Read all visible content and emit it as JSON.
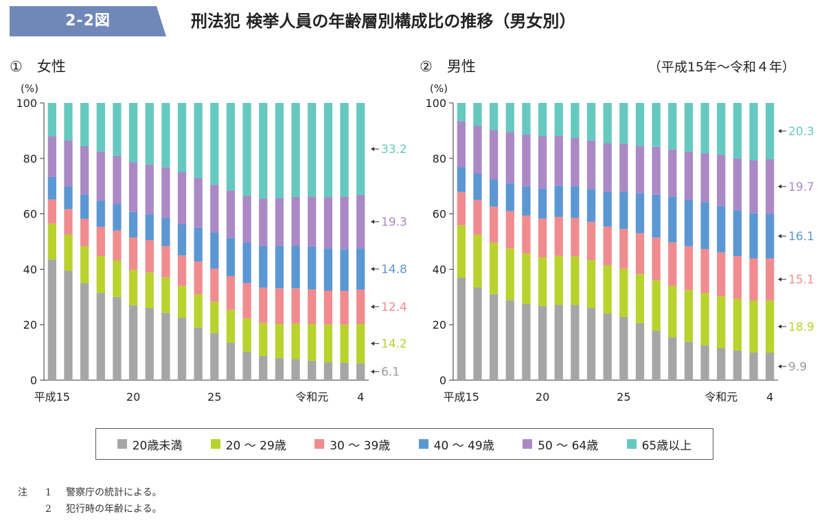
{
  "header": {
    "figure_number": "2-2図",
    "title": "刑法犯 検挙人員の年齢層別構成比の推移（男女別）"
  },
  "period_label": "（平成15年～令和４年）",
  "legend": [
    {
      "label": "20歳未満",
      "color": "#a6a6a6"
    },
    {
      "label": "20 ～ 29歳",
      "color": "#b9d22e"
    },
    {
      "label": "30 ～ 39歳",
      "color": "#f08c8f"
    },
    {
      "label": "40 ～ 49歳",
      "color": "#5b97d3"
    },
    {
      "label": "50 ～ 64歳",
      "color": "#ab89c5"
    },
    {
      "label": "65歳以上",
      "color": "#66c9c0"
    }
  ],
  "notes": {
    "head": "注",
    "items": [
      {
        "num": "1",
        "text": "警察庁の統計による。"
      },
      {
        "num": "2",
        "text": "犯行時の年齢による。"
      }
    ]
  },
  "chart_data": [
    {
      "type": "bar",
      "stacked": true,
      "title": "①　女性",
      "ylabel": "(%)",
      "ylim": [
        0,
        100
      ],
      "yticks": [
        0,
        20,
        40,
        60,
        80,
        100
      ],
      "categories": [
        "平成15",
        "16",
        "17",
        "18",
        "19",
        "20",
        "21",
        "22",
        "23",
        "24",
        "25",
        "26",
        "27",
        "28",
        "29",
        "30",
        "令和元",
        "2",
        "3",
        "4"
      ],
      "xtick_labels": [
        "平成15",
        "",
        "",
        "",
        "",
        "20",
        "",
        "",
        "",
        "",
        "25",
        "",
        "",
        "",
        "",
        "",
        "令和元",
        "",
        "",
        "4"
      ],
      "series": [
        {
          "name": "20歳未満",
          "values": [
            43.5,
            39.5,
            35.0,
            31.5,
            30.0,
            27.0,
            26.0,
            24.3,
            22.5,
            19.0,
            17.0,
            13.5,
            10.3,
            8.7,
            8.0,
            7.6,
            7.0,
            6.5,
            6.2,
            6.1
          ]
        },
        {
          "name": "20 ～ 29歳",
          "values": [
            13.0,
            13.0,
            13.3,
            13.3,
            13.2,
            12.7,
            12.8,
            12.8,
            11.5,
            12.0,
            11.3,
            11.8,
            12.0,
            11.9,
            12.3,
            12.8,
            13.3,
            13.5,
            13.8,
            14.2
          ]
        },
        {
          "name": "30 ～ 39歳",
          "values": [
            8.7,
            9.2,
            9.9,
            10.5,
            10.8,
            11.8,
            11.7,
            11.3,
            11.0,
            11.8,
            11.9,
            12.2,
            12.7,
            12.8,
            12.8,
            12.7,
            12.4,
            12.3,
            12.2,
            12.4
          ]
        },
        {
          "name": "40 ～ 49歳",
          "values": [
            8.1,
            8.2,
            8.8,
            9.5,
            9.5,
            9.2,
            9.3,
            10.2,
            11.3,
            12.2,
            13.0,
            13.8,
            14.5,
            15.0,
            15.3,
            15.4,
            15.4,
            15.2,
            15.0,
            14.8
          ]
        },
        {
          "name": "50 ～ 64歳",
          "values": [
            14.7,
            16.6,
            17.4,
            17.6,
            17.5,
            17.9,
            18.0,
            18.2,
            18.7,
            17.9,
            17.3,
            17.1,
            17.0,
            17.1,
            17.2,
            17.6,
            18.1,
            18.5,
            19.0,
            19.3
          ]
        },
        {
          "name": "65歳以上",
          "values": [
            12.0,
            13.5,
            15.6,
            17.6,
            19.0,
            21.4,
            22.2,
            23.2,
            25.0,
            27.1,
            29.5,
            31.6,
            33.5,
            34.5,
            34.4,
            33.9,
            33.8,
            34.0,
            33.8,
            33.2
          ]
        }
      ],
      "end_labels": [
        "6.1",
        "14.2",
        "12.4",
        "14.8",
        "19.3",
        "33.2"
      ]
    },
    {
      "type": "bar",
      "stacked": true,
      "title": "②　男性",
      "ylabel": "(%)",
      "ylim": [
        0,
        100
      ],
      "yticks": [
        0,
        20,
        40,
        60,
        80,
        100
      ],
      "categories": [
        "平成15",
        "16",
        "17",
        "18",
        "19",
        "20",
        "21",
        "22",
        "23",
        "24",
        "25",
        "26",
        "27",
        "28",
        "29",
        "30",
        "令和元",
        "2",
        "3",
        "4"
      ],
      "xtick_labels": [
        "平成15",
        "",
        "",
        "",
        "",
        "20",
        "",
        "",
        "",
        "",
        "25",
        "",
        "",
        "",
        "",
        "",
        "令和元",
        "",
        "",
        "4"
      ],
      "series": [
        {
          "name": "20歳未満",
          "values": [
            37.0,
            33.5,
            31.0,
            28.8,
            27.5,
            26.8,
            27.2,
            27.2,
            26.0,
            24.0,
            22.8,
            20.6,
            17.8,
            15.5,
            13.9,
            12.6,
            11.5,
            10.7,
            10.0,
            9.9
          ]
        },
        {
          "name": "20 ～ 29歳",
          "values": [
            18.9,
            19.0,
            18.6,
            18.7,
            18.2,
            17.5,
            17.7,
            17.5,
            17.3,
            17.4,
            17.4,
            17.7,
            18.3,
            18.5,
            18.6,
            18.8,
            18.8,
            18.6,
            18.7,
            18.9
          ]
        },
        {
          "name": "30 ～ 39歳",
          "values": [
            12.0,
            12.5,
            13.0,
            13.5,
            13.7,
            14.0,
            14.0,
            13.8,
            13.8,
            14.0,
            14.3,
            14.7,
            15.3,
            15.7,
            15.8,
            15.9,
            15.8,
            15.5,
            15.2,
            15.1
          ]
        },
        {
          "name": "40 ～ 49歳",
          "values": [
            9.0,
            9.5,
            9.8,
            10.0,
            10.5,
            10.8,
            11.2,
            11.5,
            11.8,
            12.5,
            13.5,
            14.5,
            15.5,
            16.5,
            16.8,
            16.9,
            16.7,
            16.5,
            16.3,
            16.1
          ]
        },
        {
          "name": "50 ～ 64歳",
          "values": [
            16.5,
            17.3,
            17.8,
            18.5,
            18.7,
            18.9,
            18.0,
            17.4,
            17.5,
            17.6,
            17.3,
            17.0,
            17.3,
            17.0,
            17.3,
            17.6,
            18.4,
            18.7,
            19.2,
            19.7
          ]
        },
        {
          "name": "65歳以上",
          "values": [
            6.6,
            8.2,
            9.8,
            10.5,
            11.4,
            12.0,
            11.9,
            12.6,
            13.6,
            14.5,
            14.7,
            15.5,
            15.8,
            16.8,
            17.6,
            18.2,
            18.8,
            20.0,
            20.6,
            20.3
          ]
        }
      ],
      "end_labels": [
        "9.9",
        "18.9",
        "15.1",
        "16.1",
        "19.7",
        "20.3"
      ]
    }
  ]
}
